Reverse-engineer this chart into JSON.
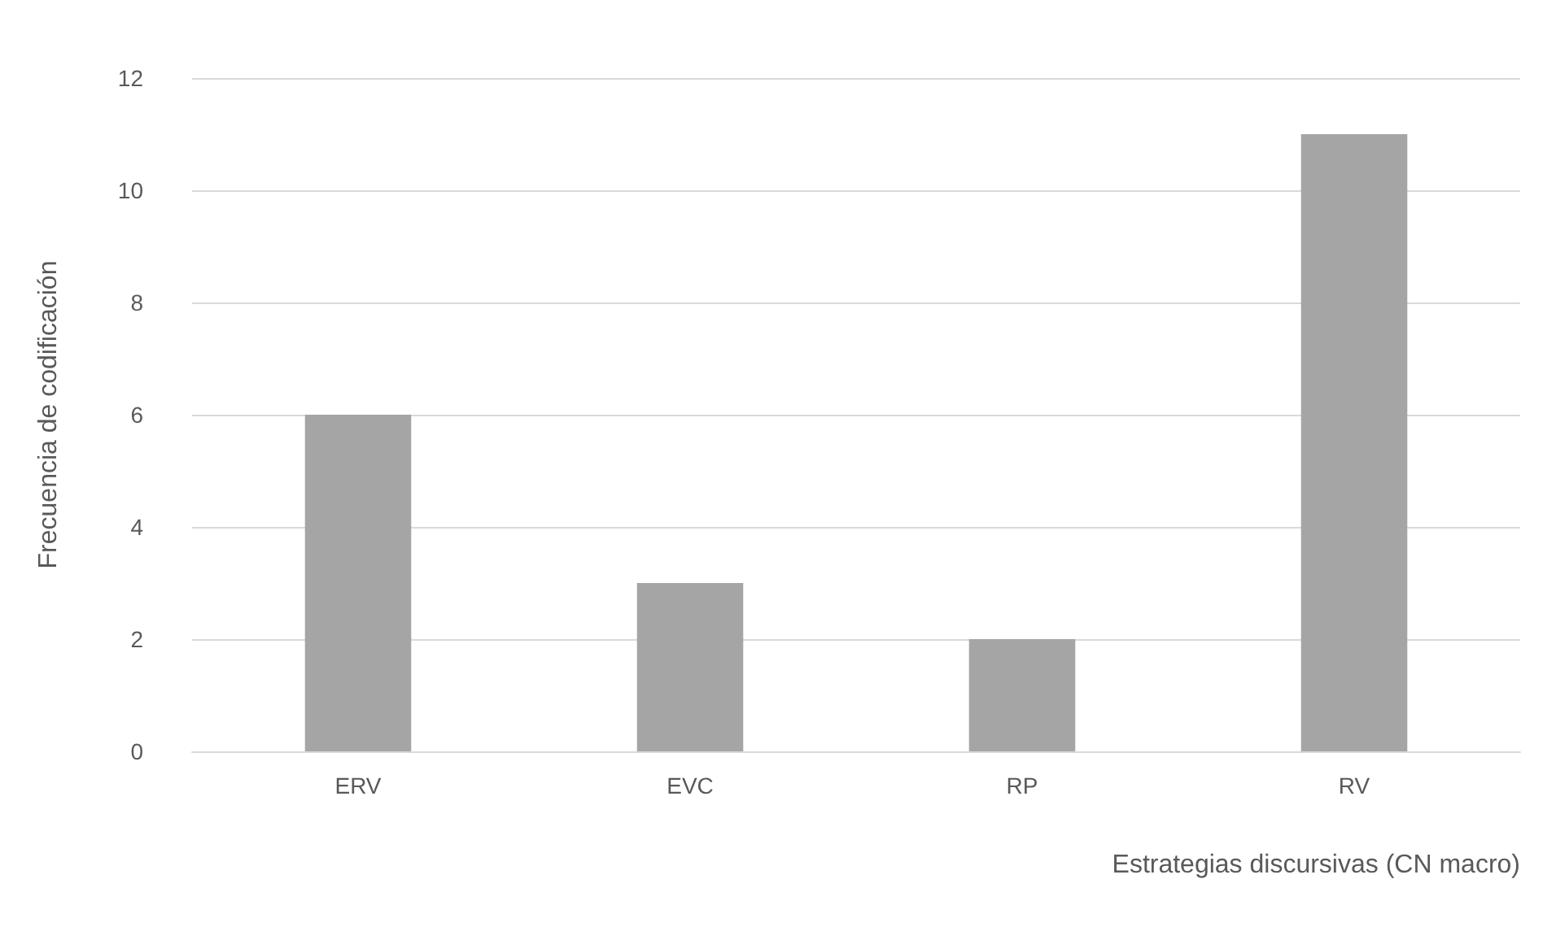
{
  "chart_data": {
    "type": "bar",
    "xlabel": "Estrategias discursivas (CN macro)",
    "ylabel": "Frecuencia de codificación",
    "categories": [
      "ERV",
      "EVC",
      "RP",
      "RV"
    ],
    "values": [
      6,
      3,
      2,
      11
    ],
    "color": "#a5a5a5",
    "ylim": [
      0,
      12
    ],
    "yticks": [
      0,
      2,
      4,
      6,
      8,
      10,
      12
    ],
    "grid": "y"
  }
}
